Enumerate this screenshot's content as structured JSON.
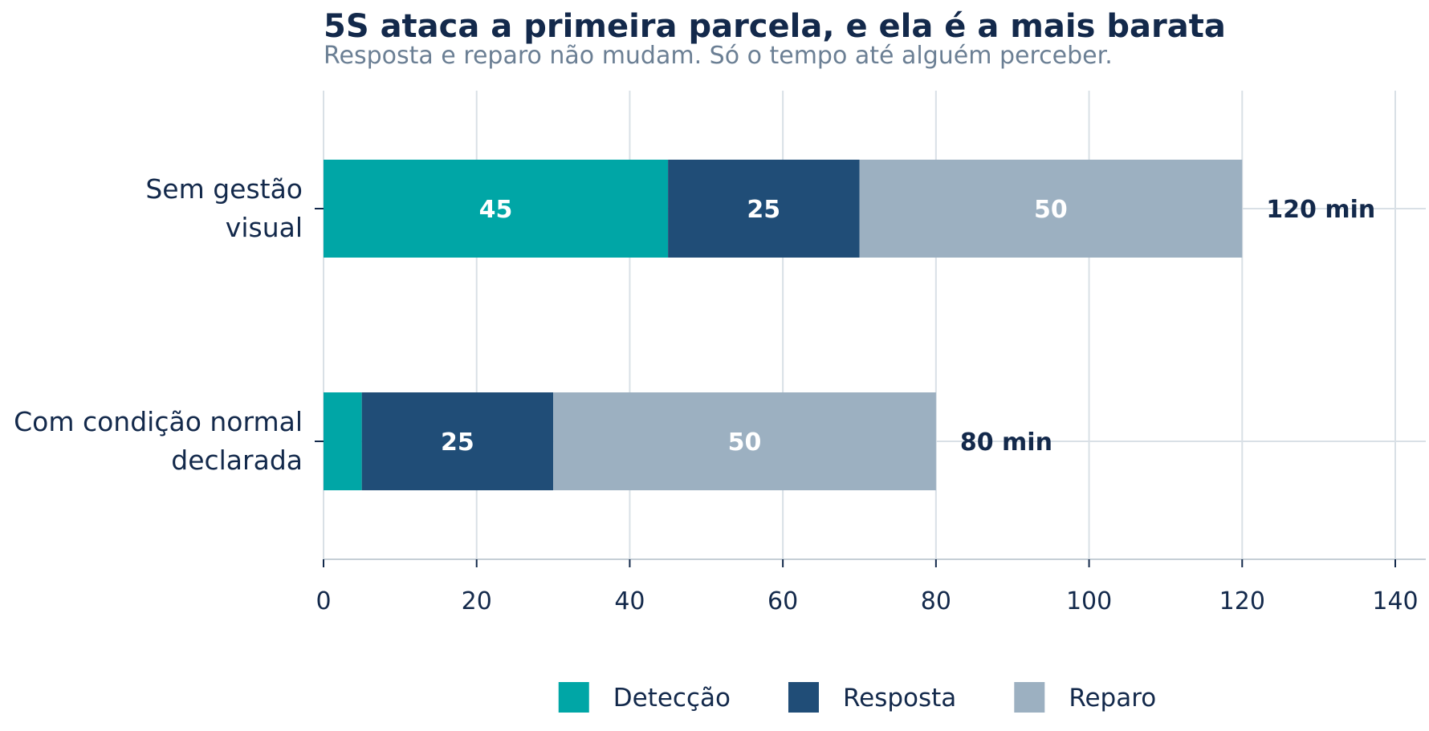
{
  "chart_data": {
    "type": "bar",
    "orientation": "horizontal",
    "stacked": true,
    "title": "5S ataca a primeira parcela, e ela é a mais barata",
    "subtitle": "Resposta e reparo não mudam. Só o tempo até alguém perceber.",
    "categories": [
      [
        "Sem gestão",
        "visual"
      ],
      [
        "Com condição normal",
        "declarada"
      ]
    ],
    "series": [
      {
        "name": "Detecção",
        "color": "#00a6a6",
        "values": [
          45,
          5
        ],
        "labels": [
          "45",
          ""
        ]
      },
      {
        "name": "Resposta",
        "color": "#204d77",
        "values": [
          25,
          25
        ],
        "labels": [
          "25",
          "25"
        ]
      },
      {
        "name": "Reparo",
        "color": "#9cb0c1",
        "values": [
          50,
          50
        ],
        "labels": [
          "50",
          "50"
        ]
      }
    ],
    "totals": [
      "120 min",
      "80 min"
    ],
    "xlim": [
      0,
      140
    ],
    "xticks": [
      "0",
      "20",
      "40",
      "60",
      "80",
      "100",
      "120",
      "140"
    ],
    "xlabel": "",
    "ylabel": "",
    "grid": true,
    "legend_position": "bottom"
  }
}
